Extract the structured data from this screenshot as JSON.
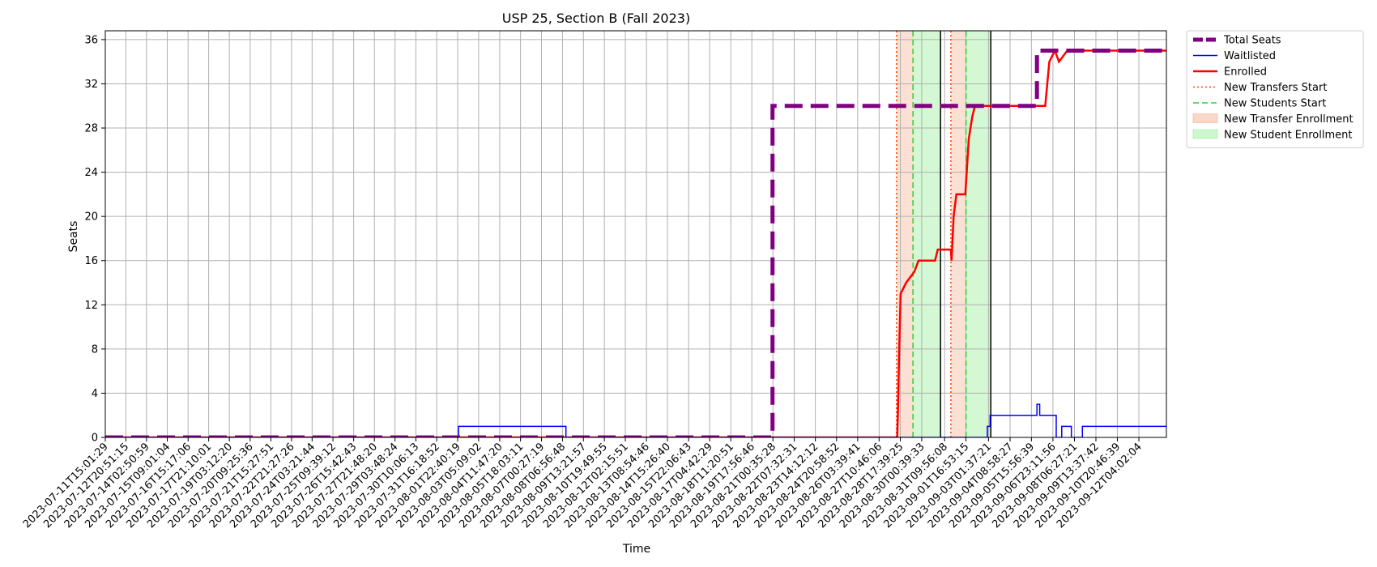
{
  "chart_data": {
    "type": "line",
    "title": "USP 25, Section B (Fall 2023)",
    "xlabel": "Time",
    "ylabel": "Seats",
    "x_range": [
      "2023-07-11T15:01:29",
      "2023-09-13T20:00:00"
    ],
    "ylim": [
      0,
      36.8
    ],
    "y_ticks": [
      0,
      4,
      8,
      12,
      16,
      20,
      24,
      28,
      32,
      36
    ],
    "x_ticks": [
      "2023-07-11T15:01:29",
      "2023-07-12T20:51:15",
      "2023-07-14T02:50:59",
      "2023-07-15T09:01:04",
      "2023-07-16T15:17:06",
      "2023-07-17T21:10:01",
      "2023-07-19T03:12:20",
      "2023-07-20T09:25:36",
      "2023-07-21T15:27:51",
      "2023-07-22T21:27:26",
      "2023-07-24T03:21:44",
      "2023-07-25T09:39:12",
      "2023-07-26T15:42:43",
      "2023-07-27T21:48:20",
      "2023-07-29T03:48:24",
      "2023-07-30T10:06:13",
      "2023-07-31T16:18:52",
      "2023-08-01T22:40:19",
      "2023-08-03T05:09:02",
      "2023-08-04T11:47:20",
      "2023-08-05T18:03:11",
      "2023-08-07T00:27:19",
      "2023-08-08T06:56:48",
      "2023-08-09T13:21:57",
      "2023-08-10T19:49:55",
      "2023-08-12T02:15:51",
      "2023-08-13T08:54:46",
      "2023-08-14T15:26:40",
      "2023-08-15T22:06:43",
      "2023-08-17T04:42:29",
      "2023-08-18T11:20:51",
      "2023-08-19T17:56:46",
      "2023-08-21T00:35:28",
      "2023-08-22T07:32:31",
      "2023-08-23T14:12:12",
      "2023-08-24T20:58:52",
      "2023-08-26T03:39:41",
      "2023-08-27T10:46:06",
      "2023-08-28T17:39:25",
      "2023-08-30T00:39:33",
      "2023-08-31T09:56:08",
      "2023-09-01T16:53:15",
      "2023-09-03T01:37:21",
      "2023-09-04T08:58:27",
      "2023-09-05T15:56:39",
      "2023-09-06T23:11:56",
      "2023-09-08T06:27:21",
      "2023-09-09T13:37:42",
      "2023-09-10T20:46:39",
      "2023-09-12T04:02:04"
    ],
    "grid": true,
    "legend_position": "outside-top-right",
    "series": [
      {
        "name": "Total Seats",
        "color": "#800080",
        "style": "dashed-thick",
        "points": [
          [
            "2023-07-11T15:01:29",
            0
          ],
          [
            "2023-08-21T00:00:00",
            0
          ],
          [
            "2023-08-21T00:00:00",
            30
          ],
          [
            "2023-09-06T00:00:00",
            30
          ],
          [
            "2023-09-06T00:00:00",
            35
          ],
          [
            "2023-09-13T20:00:00",
            35
          ]
        ]
      },
      {
        "name": "Waitlisted",
        "color": "#0000ff",
        "style": "solid-thin",
        "points": [
          [
            "2023-07-11T15:01:29",
            0
          ],
          [
            "2023-08-02T00:00:00",
            0
          ],
          [
            "2023-08-02T00:00:00",
            1
          ],
          [
            "2023-08-08T12:00:00",
            1
          ],
          [
            "2023-08-08T12:00:00",
            0
          ],
          [
            "2023-09-03T00:00:00",
            0
          ],
          [
            "2023-09-03T00:00:00",
            1
          ],
          [
            "2023-09-03T04:00:00",
            1
          ],
          [
            "2023-09-03T04:00:00",
            2
          ],
          [
            "2023-09-06T00:00:00",
            2
          ],
          [
            "2023-09-06T00:00:00",
            3
          ],
          [
            "2023-09-06T04:00:00",
            3
          ],
          [
            "2023-09-06T04:00:00",
            2
          ],
          [
            "2023-09-07T04:00:00",
            2
          ],
          [
            "2023-09-07T04:00:00",
            0
          ],
          [
            "2023-09-07T12:00:00",
            0
          ],
          [
            "2023-09-07T12:00:00",
            1
          ],
          [
            "2023-09-08T02:00:00",
            1
          ],
          [
            "2023-09-08T02:00:00",
            0
          ],
          [
            "2023-09-08T18:00:00",
            0
          ],
          [
            "2023-09-08T18:00:00",
            1
          ],
          [
            "2023-09-13T20:00:00",
            1
          ]
        ]
      },
      {
        "name": "Enrolled",
        "color": "#ff0000",
        "style": "solid-thick",
        "points": [
          [
            "2023-07-11T15:01:29",
            0
          ],
          [
            "2023-08-28T13:00:00",
            0
          ],
          [
            "2023-08-28T14:00:00",
            2
          ],
          [
            "2023-08-28T16:00:00",
            8
          ],
          [
            "2023-08-28T18:00:00",
            13
          ],
          [
            "2023-08-29T02:00:00",
            14
          ],
          [
            "2023-08-29T14:00:00",
            15
          ],
          [
            "2023-08-29T20:00:00",
            16
          ],
          [
            "2023-08-30T20:00:00",
            16
          ],
          [
            "2023-08-31T00:00:00",
            17
          ],
          [
            "2023-08-31T19:00:00",
            17
          ],
          [
            "2023-08-31T20:00:00",
            16
          ],
          [
            "2023-08-31T23:00:00",
            20
          ],
          [
            "2023-09-01T03:00:00",
            22
          ],
          [
            "2023-09-01T16:00:00",
            22
          ],
          [
            "2023-09-01T21:00:00",
            27
          ],
          [
            "2023-09-02T02:00:00",
            29
          ],
          [
            "2023-09-02T06:00:00",
            30
          ],
          [
            "2023-09-06T12:00:00",
            30
          ],
          [
            "2023-09-06T18:00:00",
            34
          ],
          [
            "2023-09-07T02:00:00",
            35
          ],
          [
            "2023-09-07T08:00:00",
            34
          ],
          [
            "2023-09-07T20:00:00",
            35
          ],
          [
            "2023-09-13T20:00:00",
            35
          ]
        ]
      }
    ],
    "vertical_lines": [
      {
        "name": "New Transfers Start",
        "color": "#ff4500",
        "style": "dotted",
        "dates": [
          "2023-08-28T12:00:00",
          "2023-08-31T19:00:00"
        ]
      },
      {
        "name": "New Students Start",
        "color": "#32cd32",
        "style": "dashed",
        "dates": [
          "2023-08-29T12:00:00",
          "2023-09-01T17:00:00"
        ]
      },
      {
        "name": "",
        "color": "#000000",
        "style": "solid",
        "dates": [
          "2023-08-31T04:00:00",
          "2023-09-03T05:00:00"
        ]
      }
    ],
    "spans": [
      {
        "name": "New Transfer Enrollment",
        "color": "#f4a582",
        "opacity": 0.35,
        "ranges": [
          [
            "2023-08-28T12:00:00",
            "2023-08-29T12:00:00"
          ],
          [
            "2023-08-31T19:00:00",
            "2023-09-01T17:00:00"
          ]
        ]
      },
      {
        "name": "New Student Enrollment",
        "color": "#90ee90",
        "opacity": 0.4,
        "ranges": [
          [
            "2023-08-29T12:00:00",
            "2023-08-31T04:00:00"
          ],
          [
            "2023-09-01T17:00:00",
            "2023-09-03T05:00:00"
          ]
        ]
      }
    ],
    "legend": [
      {
        "label": "Total Seats",
        "kind": "line",
        "color": "#800080",
        "style": "dashed-thick"
      },
      {
        "label": "Waitlisted",
        "kind": "line",
        "color": "#0000ff",
        "style": "solid-thin"
      },
      {
        "label": "Enrolled",
        "kind": "line",
        "color": "#ff0000",
        "style": "solid-thick"
      },
      {
        "label": "New Transfers Start",
        "kind": "line",
        "color": "#ff4500",
        "style": "dotted"
      },
      {
        "label": "New Students Start",
        "kind": "line",
        "color": "#32cd32",
        "style": "dashed"
      },
      {
        "label": "New Transfer Enrollment",
        "kind": "patch",
        "color": "#f4a582"
      },
      {
        "label": "New Student Enrollment",
        "kind": "patch",
        "color": "#90ee90"
      }
    ]
  }
}
